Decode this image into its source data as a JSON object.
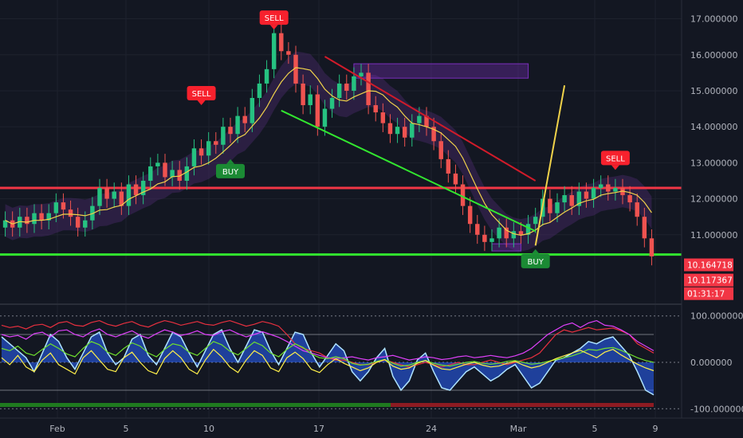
{
  "chart_data": [
    {
      "type": "candlestick",
      "panel": "price",
      "y_ticks": [
        "17.000000",
        "16.000000",
        "15.000000",
        "14.000000",
        "13.000000",
        "12.000000",
        "11.000000"
      ],
      "ylim": [
        10.0,
        17.3
      ],
      "x_ticks": [
        "Feb",
        "5",
        "10",
        "17",
        "24",
        "Mar",
        "5",
        "9"
      ],
      "price_labels": [
        {
          "text": "10.164718",
          "value": 10.164718,
          "color": "#f23645"
        },
        {
          "text": "10.117367",
          "value": 10.117367,
          "color": "#f23645"
        },
        {
          "text": "01:31:17",
          "color": "#f23645"
        }
      ],
      "signals": [
        {
          "label": "SELL",
          "type": "sell",
          "date_index": 37,
          "price": 16.7
        },
        {
          "label": "SELL",
          "type": "sell",
          "date_index": 27,
          "price": 14.6
        },
        {
          "label": "SELL",
          "type": "sell",
          "date_index": 84,
          "price": 12.8
        },
        {
          "label": "BUY",
          "type": "buy",
          "date_index": 31,
          "price": 13.1
        },
        {
          "label": "BUY",
          "type": "buy",
          "date_index": 73,
          "price": 10.6
        }
      ],
      "key_levels": [
        {
          "name": "resistance",
          "value": 12.3,
          "color": "#f23645"
        },
        {
          "name": "support",
          "value": 10.45,
          "color": "#32e62f"
        }
      ],
      "trend_lines": [
        {
          "color": "#32e62f",
          "from": [
            38,
            14.45
          ],
          "to": [
            73,
            11.1
          ]
        },
        {
          "color": "#d11b2a",
          "from": [
            44,
            15.95
          ],
          "to": [
            73,
            12.5
          ]
        },
        {
          "color": "#f0d24a",
          "from": [
            73,
            10.7
          ],
          "to": [
            77,
            15.15
          ]
        }
      ],
      "zones": [
        {
          "color": "#7b2fbe",
          "from": [
            48,
            15.75
          ],
          "to": [
            72,
            15.35
          ]
        },
        {
          "color": "#7b2fbe",
          "from": [
            67,
            10.75
          ],
          "to": [
            71,
            10.55
          ]
        }
      ],
      "close_series": [
        11.4,
        11.2,
        11.5,
        11.3,
        11.6,
        11.4,
        11.6,
        11.9,
        11.7,
        11.5,
        11.2,
        11.4,
        11.8,
        12.3,
        12.0,
        12.2,
        11.8,
        12.4,
        12.1,
        12.5,
        12.9,
        13.0,
        12.6,
        12.8,
        12.5,
        12.9,
        13.4,
        13.2,
        13.6,
        13.5,
        14.0,
        13.8,
        14.3,
        14.1,
        14.8,
        15.2,
        15.6,
        16.6,
        16.1,
        16.0,
        15.2,
        14.6,
        14.9,
        14.0,
        14.5,
        14.8,
        15.2,
        15.0,
        15.4,
        15.5,
        14.6,
        14.4,
        14.1,
        13.8,
        14.0,
        13.7,
        14.1,
        14.3,
        14.0,
        13.6,
        13.1,
        12.7,
        12.4,
        11.8,
        11.3,
        11.0,
        10.8,
        10.9,
        11.2,
        10.9,
        11.1,
        11.0,
        11.3,
        11.5,
        12.0,
        11.6,
        11.9,
        12.1,
        11.8,
        12.2,
        12.0,
        12.3,
        12.4,
        12.2,
        12.3,
        12.1,
        11.9,
        11.5,
        10.9,
        10.4
      ]
    },
    {
      "type": "line",
      "panel": "oscillator",
      "y_ticks": [
        "100.000000",
        "0.000000",
        "-100.000000"
      ],
      "ylim": [
        -115,
        115
      ],
      "series": [
        {
          "color": "#2962ff",
          "values": [
            55,
            40,
            25,
            10,
            -20,
            20,
            60,
            45,
            10,
            -15,
            20,
            55,
            65,
            20,
            -5,
            10,
            50,
            60,
            15,
            -5,
            30,
            65,
            55,
            20,
            -10,
            25,
            60,
            70,
            30,
            0,
            35,
            70,
            65,
            25,
            -5,
            30,
            65,
            60,
            20,
            -10,
            15,
            40,
            25,
            -20,
            -40,
            -20,
            10,
            30,
            -30,
            -60,
            -40,
            5,
            20,
            -20,
            -55,
            -60,
            -40,
            -20,
            -10,
            -25,
            -40,
            -30,
            -15,
            -5,
            -30,
            -55,
            -45,
            -20,
            5,
            10,
            20,
            30,
            45,
            40,
            50,
            55,
            35,
            15,
            -20,
            -60,
            -70
          ]
        },
        {
          "color": "#e8303f",
          "values": [
            80,
            75,
            78,
            72,
            80,
            82,
            75,
            85,
            88,
            80,
            78,
            86,
            90,
            82,
            78,
            84,
            88,
            80,
            76,
            84,
            90,
            86,
            80,
            84,
            88,
            82,
            80,
            86,
            90,
            84,
            78,
            82,
            88,
            84,
            78,
            60,
            40,
            30,
            25,
            20,
            10,
            5,
            5,
            0,
            -5,
            -5,
            0,
            5,
            0,
            -5,
            -10,
            -5,
            0,
            -5,
            -10,
            -5,
            0,
            -5,
            -5,
            0,
            5,
            0,
            -5,
            0,
            5,
            10,
            20,
            40,
            60,
            70,
            65,
            70,
            75,
            70,
            72,
            74,
            68,
            60,
            40,
            30,
            20
          ]
        },
        {
          "color": "#e040fb",
          "values": [
            60,
            55,
            58,
            50,
            62,
            65,
            55,
            68,
            70,
            60,
            55,
            66,
            72,
            60,
            55,
            62,
            68,
            58,
            52,
            62,
            70,
            65,
            58,
            62,
            68,
            60,
            58,
            66,
            70,
            62,
            55,
            60,
            66,
            60,
            54,
            45,
            35,
            25,
            20,
            15,
            10,
            8,
            10,
            12,
            8,
            5,
            10,
            12,
            15,
            10,
            5,
            8,
            12,
            10,
            6,
            8,
            12,
            14,
            10,
            12,
            15,
            12,
            10,
            14,
            20,
            30,
            45,
            60,
            70,
            80,
            85,
            75,
            85,
            90,
            80,
            78,
            70,
            60,
            45,
            35,
            25
          ]
        },
        {
          "color": "#6fe02e",
          "values": [
            30,
            25,
            35,
            20,
            15,
            28,
            40,
            30,
            18,
            12,
            30,
            45,
            38,
            22,
            15,
            30,
            42,
            35,
            20,
            12,
            28,
            40,
            36,
            22,
            15,
            30,
            45,
            38,
            24,
            16,
            30,
            44,
            36,
            20,
            12,
            28,
            40,
            32,
            18,
            10,
            8,
            12,
            8,
            -2,
            -6,
            -4,
            2,
            6,
            -2,
            -8,
            -6,
            0,
            4,
            -2,
            -6,
            -8,
            -4,
            0,
            2,
            -2,
            -4,
            -2,
            2,
            4,
            0,
            -4,
            -2,
            2,
            6,
            10,
            14,
            20,
            28,
            26,
            30,
            32,
            26,
            18,
            10,
            4,
            0
          ]
        },
        {
          "color": "#fff04a",
          "values": [
            10,
            -5,
            15,
            -10,
            -20,
            5,
            20,
            -5,
            -15,
            -25,
            10,
            25,
            5,
            -15,
            -20,
            10,
            22,
            0,
            -18,
            -25,
            8,
            25,
            10,
            -15,
            -25,
            5,
            28,
            12,
            -10,
            -22,
            5,
            25,
            15,
            -12,
            -20,
            10,
            22,
            8,
            -15,
            -22,
            -5,
            8,
            -2,
            -10,
            -18,
            -12,
            0,
            6,
            -8,
            -15,
            -12,
            -2,
            4,
            -6,
            -14,
            -16,
            -10,
            -4,
            0,
            -6,
            -10,
            -8,
            -2,
            2,
            -6,
            -12,
            -8,
            0,
            8,
            14,
            20,
            26,
            18,
            10,
            22,
            28,
            16,
            6,
            -4,
            -12,
            -18
          ]
        }
      ]
    }
  ]
}
